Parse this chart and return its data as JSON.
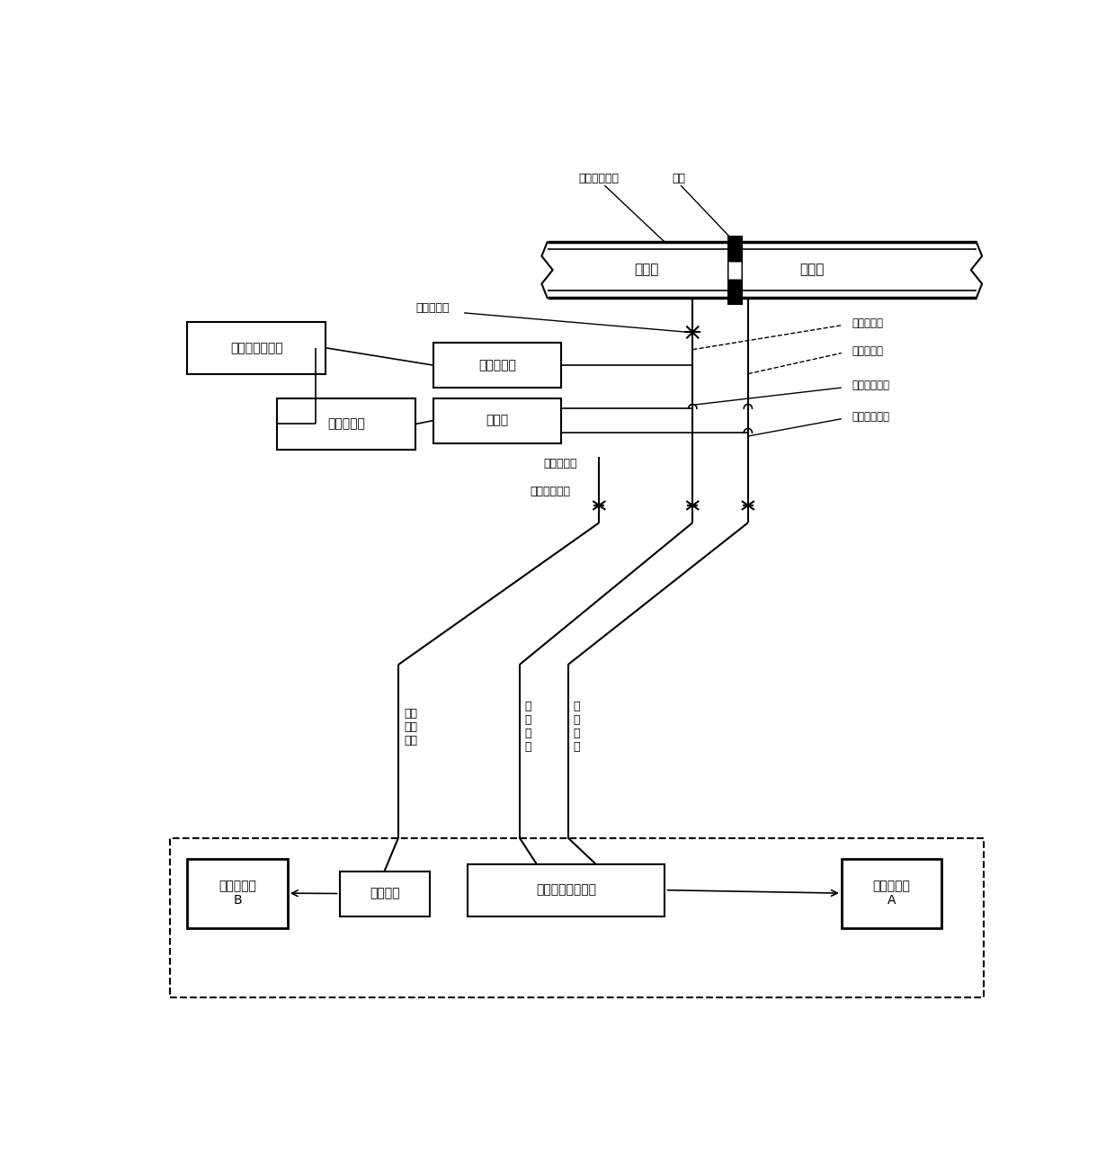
{
  "bg_color": "#ffffff",
  "labels": {
    "steam_pipe": "蒸汽输送管道",
    "orifice": "孔板",
    "upstream": "上游段",
    "downstream": "下游段",
    "lead_valve": "引压管阀门",
    "display_calc": "显示器、计算器",
    "pressure_xmtr": "压力变送器",
    "diff_xmtr": "差压变送器",
    "balance_valve": "平衡阀",
    "high_drain_pipe": "高压排污管",
    "low_drain_pipe": "低压排污管",
    "high_drain_valve": "高压排污筏门",
    "low_drain_valve": "低压排污筏门",
    "pressure_drain_pipe": "压力排污管",
    "pressure_drain_valve": "压力排污阀门",
    "pressure_connect_hose": "压力\n连接\n软管",
    "high_pressure_hose": "高\n压\n软\n管",
    "low_pressure_hose": "低\n压\n软\n管",
    "process_cal_b": "过程校验仪\nB",
    "pressure_module": "压力模块",
    "calib_diff_xmtr": "校准用差压变送器",
    "process_cal_a": "过程校验仪\nA"
  }
}
